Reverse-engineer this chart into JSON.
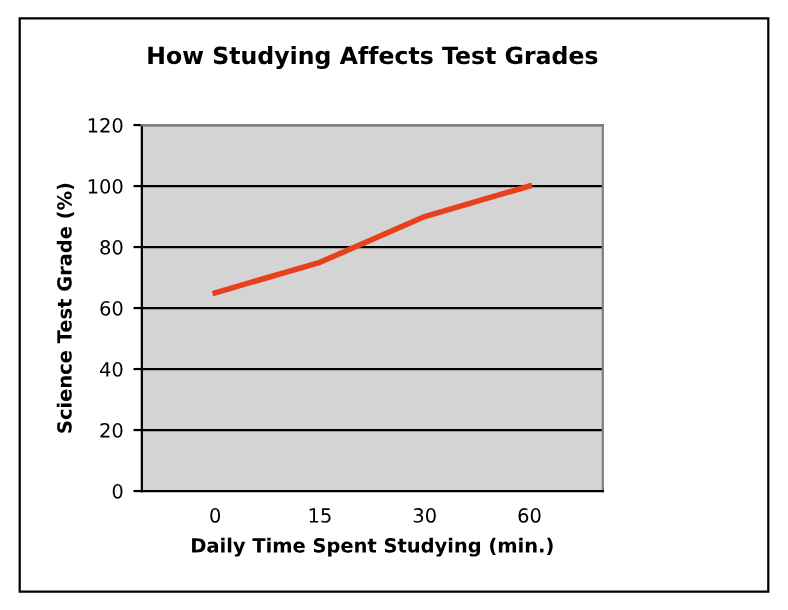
{
  "chart_data": {
    "type": "line",
    "title": "How Studying Affects Test Grades",
    "xlabel": "Daily Time Spent Studying (min.)",
    "ylabel": "Science Test Grade (%)",
    "categories": [
      "0",
      "15",
      "30",
      "60"
    ],
    "series": [
      {
        "color": "#e8401c",
        "values": [
          65,
          75,
          90,
          100
        ]
      }
    ],
    "ylim": [
      0,
      120
    ],
    "yticks": [
      0,
      20,
      40,
      60,
      80,
      100,
      120
    ],
    "grid": "y",
    "legend": false,
    "marker": "none",
    "line_style": "solid"
  }
}
